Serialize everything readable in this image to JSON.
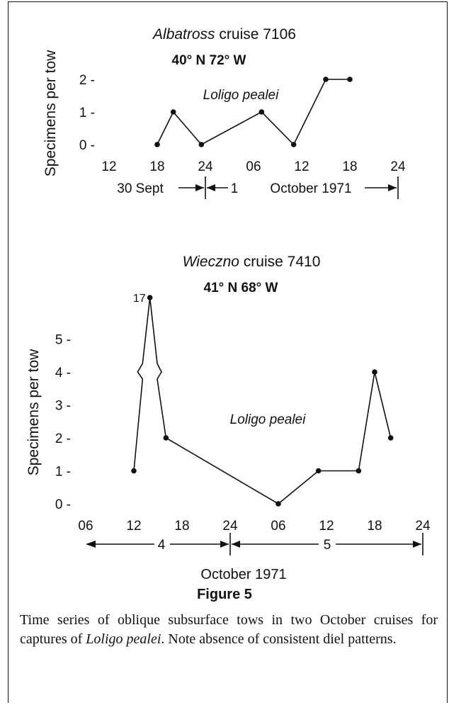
{
  "colors": {
    "ink": "#111111",
    "background": "#ffffff"
  },
  "chart_data": [
    {
      "type": "line",
      "title": "Albatross cruise 7106",
      "title_italic_part": "Albatross",
      "title_rest": "cruise 7106",
      "subtitle": "40° N 72° W",
      "ylabel": "Specimens per tow",
      "series_annotation": "Loligo pealei",
      "x_tick_labels": [
        "12",
        "18",
        "24",
        "06",
        "12",
        "18",
        "24"
      ],
      "y_ticks": [
        0,
        1,
        2
      ],
      "y_tick_labels": [
        "0 -",
        "1 -",
        "2 -"
      ],
      "ylim": [
        0,
        2
      ],
      "date_labels": {
        "left": "30 Sept",
        "middle_mark": "1",
        "right": "October 1971"
      },
      "series": [
        {
          "x_hours": [
            18,
            20,
            23.5,
            31,
            35,
            39,
            42
          ],
          "values": [
            0,
            1,
            0,
            1,
            0,
            2,
            2
          ]
        }
      ]
    },
    {
      "type": "line",
      "title": "Wieczno cruise 7410",
      "title_italic_part": "Wieczno",
      "title_rest": "cruise 7410",
      "subtitle": "41° N 68° W",
      "ylabel": "Specimens per tow",
      "series_annotation": "Loligo pealei",
      "x_tick_labels": [
        "06",
        "12",
        "18",
        "24",
        "06",
        "12",
        "18",
        "24"
      ],
      "y_ticks": [
        0,
        1,
        2,
        3,
        4,
        5
      ],
      "y_tick_labels": [
        "0 -",
        "1 -",
        "2 -",
        "3 -",
        "4 -",
        "5 -"
      ],
      "ylim": [
        0,
        5
      ],
      "axis_break": true,
      "outlier_label": "17",
      "date_labels": {
        "left_day": "4",
        "right_day": "5",
        "month": "October 1971"
      },
      "series": [
        {
          "x_hours": [
            12,
            14,
            16,
            30,
            35,
            40,
            42,
            44
          ],
          "values": [
            1,
            17,
            2,
            0,
            1,
            1,
            4,
            2
          ]
        }
      ]
    }
  ],
  "figure": {
    "label": "Figure 5",
    "caption_part1": "Time series of oblique subsurface tows in two October cruises for captures of ",
    "caption_species": "Loligo pealei",
    "caption_part2": ". Note absence of consistent diel patterns."
  }
}
